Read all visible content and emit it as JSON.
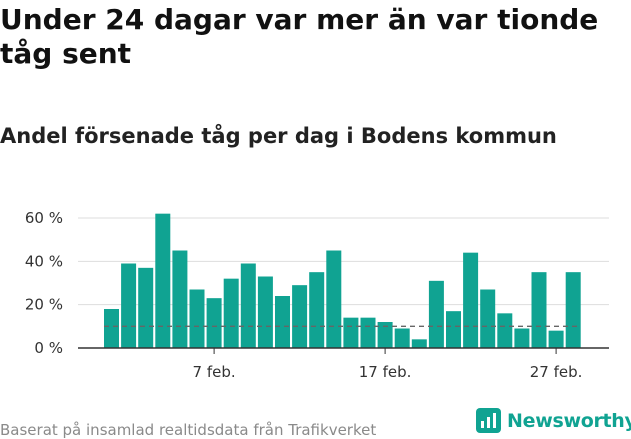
{
  "title": "Under 24 dagar var mer än var tionde tåg sent",
  "subtitle": "Andel försenade tåg per dag i Bodens kommun",
  "source": "Baserat på insamlad realtidsdata från Trafikverket",
  "brand": "Newsworthy",
  "colors": {
    "bar": "#10a392",
    "grid": "#dddddd",
    "axis": "#333333",
    "threshold": "#666666"
  },
  "chart_data": {
    "type": "bar",
    "x": [
      1,
      2,
      3,
      4,
      5,
      6,
      7,
      8,
      9,
      10,
      11,
      12,
      13,
      14,
      15,
      16,
      17,
      18,
      19,
      20,
      21,
      22,
      23,
      24,
      25,
      26,
      27,
      28
    ],
    "values": [
      18,
      39,
      37,
      62,
      45,
      27,
      23,
      32,
      39,
      33,
      24,
      29,
      35,
      45,
      14,
      14,
      12,
      9,
      4,
      31,
      17,
      44,
      27,
      16,
      9,
      35,
      8,
      35
    ],
    "yticks": [
      0,
      20,
      40,
      60
    ],
    "ytick_labels": [
      "0 %",
      "20 %",
      "40 %",
      "60 %"
    ],
    "xticks": [
      7,
      17,
      27
    ],
    "xtick_labels": [
      "7 feb.",
      "17 feb.",
      "27 feb."
    ],
    "ylim": [
      0,
      66
    ],
    "threshold": 10,
    "grid": true,
    "xlabel": "",
    "ylabel": ""
  }
}
